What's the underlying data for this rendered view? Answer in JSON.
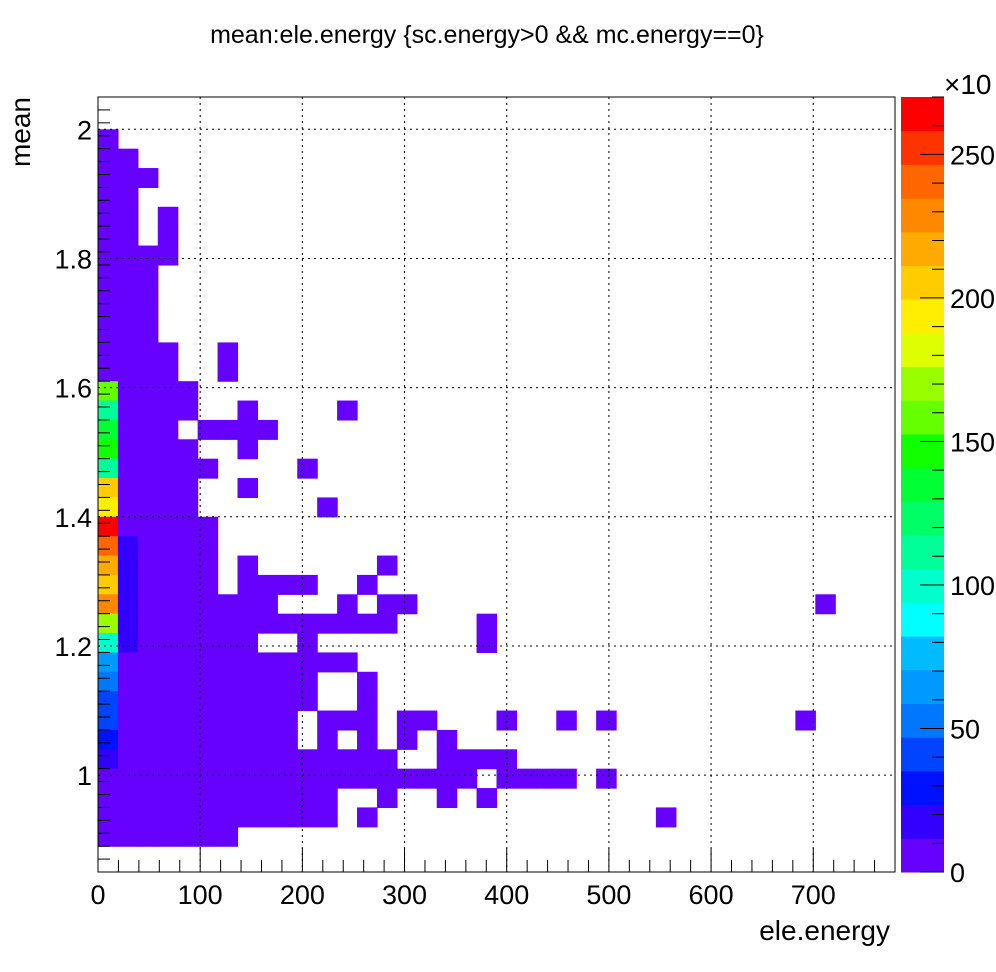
{
  "chart_data": {
    "type": "heatmap",
    "title": "mean:ele.energy {sc.energy>0 && mc.energy==0}",
    "xlabel": "ele.energy",
    "ylabel": "mean",
    "xlim": [
      0,
      780
    ],
    "ylim": [
      0.85,
      2.05
    ],
    "x_bin_width": 19.5,
    "y_bin_width": 0.03,
    "x_ticks": [
      "0",
      "100",
      "200",
      "300",
      "400",
      "500",
      "600",
      "700"
    ],
    "x_tick_values": [
      0,
      100,
      200,
      300,
      400,
      500,
      600,
      700
    ],
    "y_ticks": [
      "1",
      "1.2",
      "1.4",
      "1.6",
      "1.8",
      "2"
    ],
    "y_tick_values": [
      1.0,
      1.2,
      1.4,
      1.6,
      1.8,
      2.0
    ],
    "grid": true,
    "colorbar": {
      "zlim": [
        0,
        2700
      ],
      "ticks": [
        "0",
        "50",
        "100",
        "150",
        "200",
        "250"
      ],
      "tick_values": [
        0,
        500,
        1000,
        1500,
        2000,
        2500
      ],
      "multiplier": "×10",
      "palette": [
        "#6600ff",
        "#3300ff",
        "#0011ff",
        "#0044ff",
        "#0077ff",
        "#0099ff",
        "#00bbff",
        "#00ffff",
        "#00ffcc",
        "#00ff99",
        "#00ff66",
        "#00ff33",
        "#11ff00",
        "#66ff00",
        "#99ff00",
        "#ddff00",
        "#ffee00",
        "#ffcc00",
        "#ffaa00",
        "#ff8800",
        "#ff6600",
        "#ff3300",
        "#ff0000"
      ]
    },
    "rows": [
      {
        "y": 1.985,
        "x": [
          0
        ]
      },
      {
        "y": 1.955,
        "x": [
          0,
          19.5
        ]
      },
      {
        "y": 1.925,
        "x": [
          0,
          19.5,
          39
        ]
      },
      {
        "y": 1.895,
        "x": [
          0,
          19.5
        ]
      },
      {
        "y": 1.865,
        "x": [
          0,
          19.5,
          58.5
        ]
      },
      {
        "y": 1.835,
        "x": [
          0,
          19.5,
          58.5
        ]
      },
      {
        "y": 1.805,
        "x": [
          0,
          19.5,
          39,
          58.5
        ]
      },
      {
        "y": 1.775,
        "x": [
          0,
          19.5,
          39
        ]
      },
      {
        "y": 1.745,
        "x": [
          0,
          19.5,
          39
        ]
      },
      {
        "y": 1.715,
        "x": [
          0,
          19.5,
          39
        ]
      },
      {
        "y": 1.685,
        "x": [
          0,
          19.5,
          39
        ]
      },
      {
        "y": 1.655,
        "x": [
          0,
          19.5,
          39,
          58.5,
          117
        ]
      },
      {
        "y": 1.625,
        "x": [
          0,
          19.5,
          39,
          58.5,
          117
        ]
      },
      {
        "y": 1.595,
        "x": [
          0,
          19.5,
          39,
          58.5,
          78
        ]
      },
      {
        "y": 1.565,
        "x": [
          0,
          19.5,
          39,
          58.5,
          78,
          136.5,
          234
        ]
      },
      {
        "y": 1.535,
        "x": [
          0,
          19.5,
          39,
          58.5,
          97.5,
          117,
          136.5,
          156
        ]
      },
      {
        "y": 1.505,
        "x": [
          0,
          19.5,
          39,
          58.5,
          78,
          136.5
        ]
      },
      {
        "y": 1.475,
        "x": [
          0,
          19.5,
          39,
          58.5,
          78,
          97.5,
          195
        ]
      },
      {
        "y": 1.445,
        "x": [
          0,
          19.5,
          39,
          58.5,
          78,
          136.5
        ]
      },
      {
        "y": 1.415,
        "x": [
          0,
          19.5,
          39,
          58.5,
          78,
          214.5
        ]
      },
      {
        "y": 1.385,
        "x": [
          0,
          19.5,
          39,
          58.5,
          78,
          97.5
        ]
      },
      {
        "y": 1.355,
        "x": [
          0,
          19.5,
          39,
          58.5,
          78,
          97.5
        ]
      },
      {
        "y": 1.325,
        "x": [
          0,
          19.5,
          39,
          58.5,
          78,
          97.5,
          136.5,
          273
        ]
      },
      {
        "y": 1.295,
        "x": [
          0,
          19.5,
          39,
          58.5,
          78,
          97.5,
          136.5,
          156,
          175.5,
          195,
          253.5
        ]
      },
      {
        "y": 1.265,
        "x": [
          0,
          19.5,
          39,
          58.5,
          78,
          97.5,
          117,
          136.5,
          156,
          234,
          273,
          292.5,
          702
        ]
      },
      {
        "y": 1.235,
        "x": [
          0,
          19.5,
          39,
          58.5,
          78,
          97.5,
          117,
          136.5,
          156,
          175.5,
          195,
          214.5,
          234,
          253.5,
          273,
          370.5
        ]
      },
      {
        "y": 1.205,
        "x": [
          0,
          19.5,
          39,
          58.5,
          78,
          97.5,
          117,
          136.5,
          195,
          370.5
        ]
      },
      {
        "y": 1.175,
        "x": [
          0,
          19.5,
          39,
          58.5,
          78,
          97.5,
          117,
          136.5,
          156,
          175.5,
          195,
          214.5,
          234
        ]
      },
      {
        "y": 1.145,
        "x": [
          0,
          19.5,
          39,
          58.5,
          78,
          97.5,
          117,
          136.5,
          156,
          175.5,
          195,
          253.5
        ]
      },
      {
        "y": 1.115,
        "x": [
          0,
          19.5,
          39,
          58.5,
          78,
          97.5,
          117,
          136.5,
          156,
          175.5,
          195,
          253.5
        ]
      },
      {
        "y": 1.085,
        "x": [
          0,
          19.5,
          39,
          58.5,
          78,
          97.5,
          117,
          136.5,
          156,
          175.5,
          214.5,
          234,
          253.5,
          292.5,
          312,
          390,
          448.5,
          487.5,
          682.5
        ]
      },
      {
        "y": 1.055,
        "x": [
          0,
          19.5,
          39,
          58.5,
          78,
          97.5,
          117,
          136.5,
          156,
          175.5,
          214.5,
          253.5,
          292.5,
          331.5
        ]
      },
      {
        "y": 1.025,
        "x": [
          0,
          19.5,
          39,
          58.5,
          78,
          97.5,
          117,
          136.5,
          156,
          175.5,
          195,
          214.5,
          234,
          253.5,
          273,
          331.5,
          351,
          370.5,
          390
        ]
      },
      {
        "y": 0.995,
        "x": [
          0,
          19.5,
          39,
          58.5,
          78,
          97.5,
          117,
          136.5,
          156,
          175.5,
          195,
          214.5,
          234,
          253.5,
          273,
          292.5,
          312,
          331.5,
          351,
          390,
          409.5,
          429,
          448.5,
          487.5
        ]
      },
      {
        "y": 0.965,
        "x": [
          0,
          19.5,
          39,
          58.5,
          78,
          97.5,
          117,
          136.5,
          156,
          175.5,
          195,
          214.5,
          273,
          331.5,
          370.5
        ]
      },
      {
        "y": 0.935,
        "x": [
          0,
          19.5,
          39,
          58.5,
          78,
          97.5,
          117,
          136.5,
          156,
          175.5,
          195,
          214.5,
          253.5,
          546
        ]
      },
      {
        "y": 0.905,
        "x": [
          0,
          19.5,
          39,
          58.5,
          78,
          97.5,
          117
        ]
      }
    ],
    "hot_cells": [
      {
        "x": 0,
        "y": 1.595,
        "z": 1550
      },
      {
        "x": 0,
        "y": 1.565,
        "z": 1150
      },
      {
        "x": 0,
        "y": 1.535,
        "z": 1300
      },
      {
        "x": 0,
        "y": 1.505,
        "z": 1450
      },
      {
        "x": 0,
        "y": 1.475,
        "z": 1100
      },
      {
        "x": 0,
        "y": 1.445,
        "z": 2100
      },
      {
        "x": 0,
        "y": 1.415,
        "z": 1950
      },
      {
        "x": 0,
        "y": 1.385,
        "z": 2650
      },
      {
        "x": 0,
        "y": 1.355,
        "z": 2350
      },
      {
        "x": 0,
        "y": 1.325,
        "z": 2150
      },
      {
        "x": 0,
        "y": 1.295,
        "z": 2050
      },
      {
        "x": 0,
        "y": 1.265,
        "z": 2300
      },
      {
        "x": 0,
        "y": 1.235,
        "z": 1700
      },
      {
        "x": 0,
        "y": 1.205,
        "z": 1050
      },
      {
        "x": 0,
        "y": 1.175,
        "z": 700
      },
      {
        "x": 0,
        "y": 1.145,
        "z": 550
      },
      {
        "x": 0,
        "y": 1.115,
        "z": 450
      },
      {
        "x": 0,
        "y": 1.085,
        "z": 400
      },
      {
        "x": 0,
        "y": 1.055,
        "z": 250
      },
      {
        "x": 0,
        "y": 1.025,
        "z": 150
      },
      {
        "x": 19.5,
        "y": 1.355,
        "z": 150
      },
      {
        "x": 19.5,
        "y": 1.325,
        "z": 150
      },
      {
        "x": 19.5,
        "y": 1.295,
        "z": 150
      },
      {
        "x": 19.5,
        "y": 1.265,
        "z": 150
      },
      {
        "x": 19.5,
        "y": 1.235,
        "z": 150
      },
      {
        "x": 19.5,
        "y": 1.205,
        "z": 150
      }
    ]
  }
}
